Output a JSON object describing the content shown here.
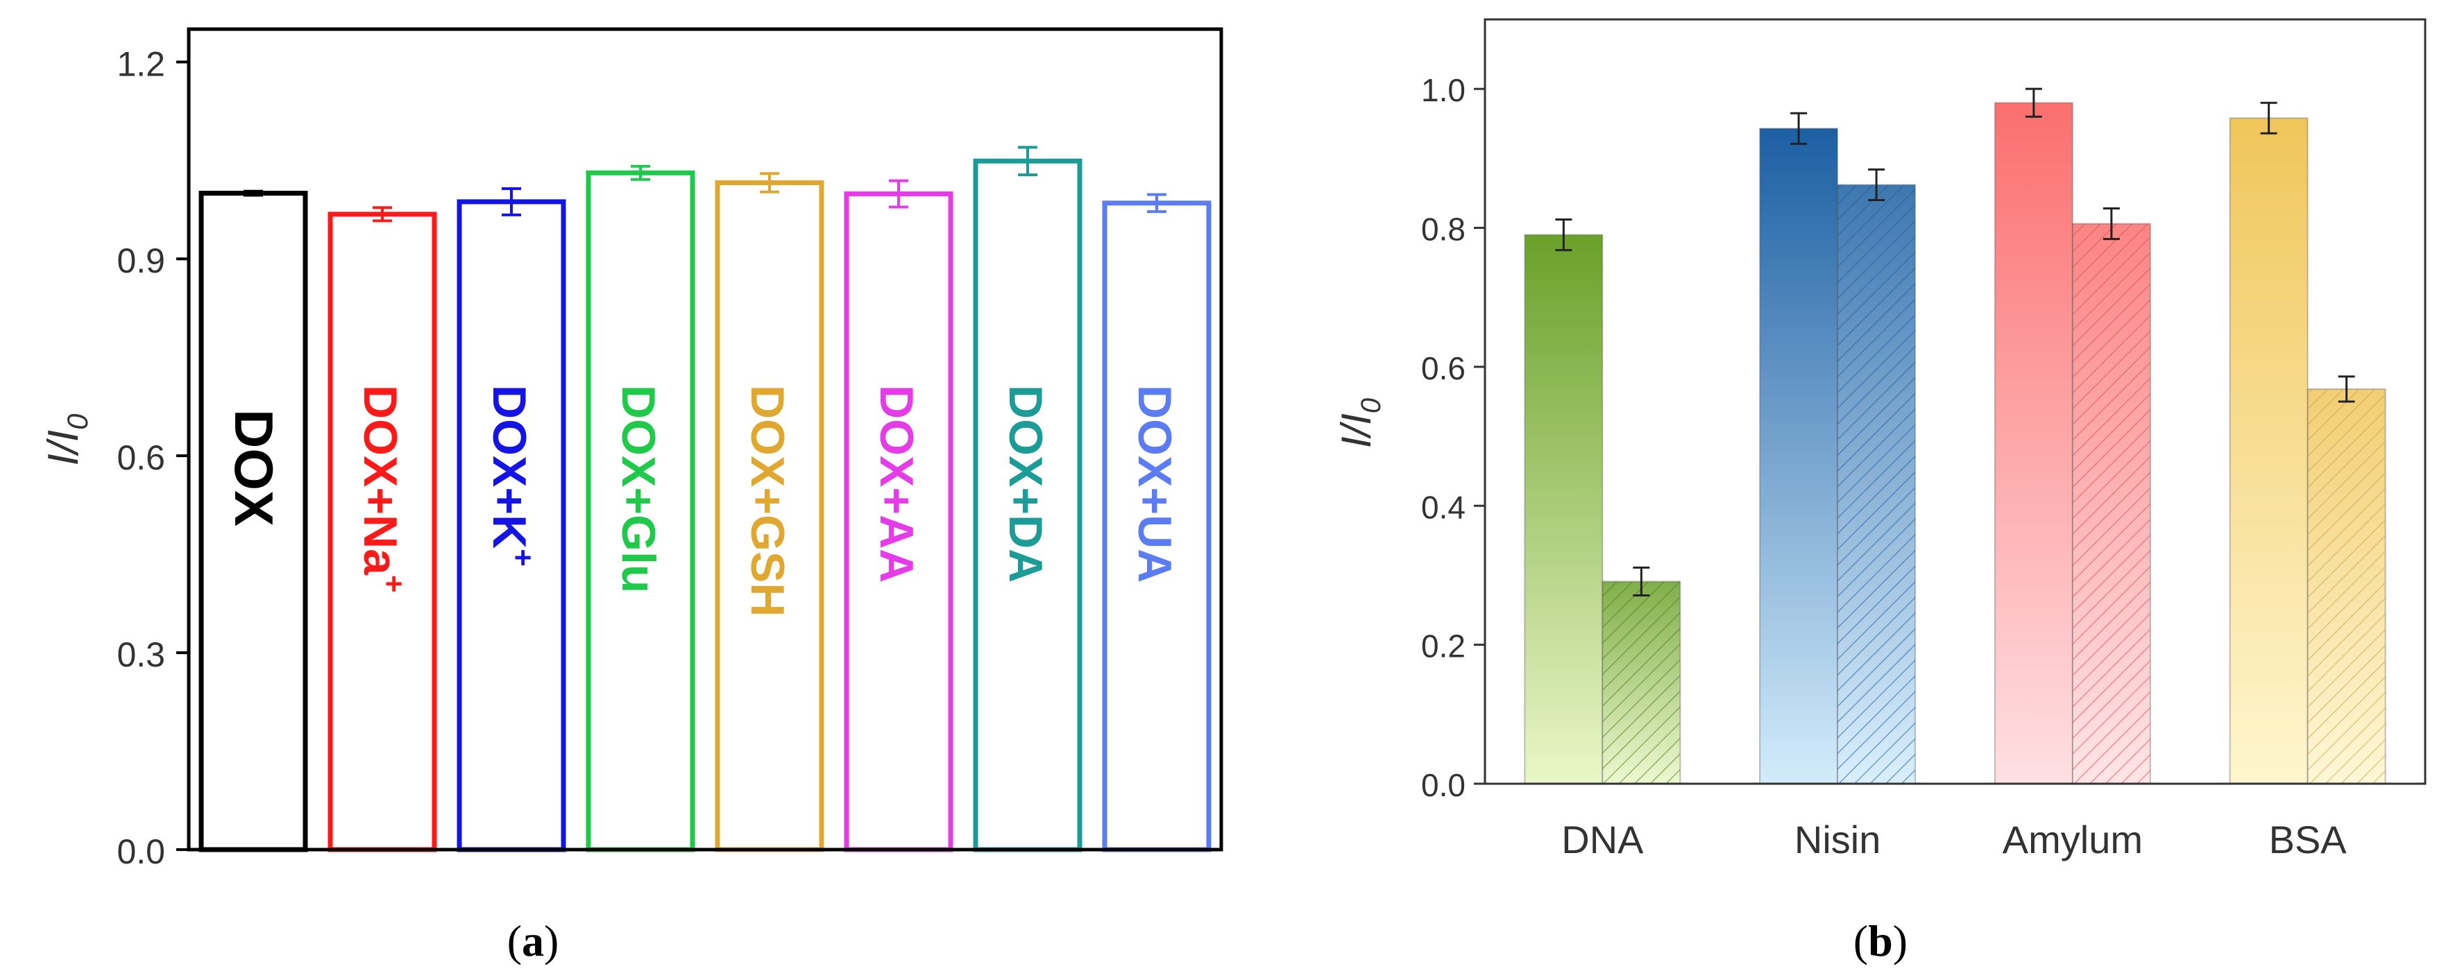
{
  "chart_data": [
    {
      "type": "bar",
      "panel_label": "(a)",
      "panel_letter": "a",
      "ylabel_main": "I/I",
      "ylabel_sub": "0",
      "xlabel": "",
      "ylim": [
        0,
        1.25
      ],
      "yticks": [
        "0.0",
        "0.3",
        "0.6",
        "0.9",
        "1.2"
      ],
      "ytick_values": [
        0,
        0.3,
        0.6,
        0.9,
        1.2
      ],
      "categories": [
        {
          "label": "DOX",
          "base": "DOX",
          "ion": "",
          "value": 1.0,
          "error": 0.003,
          "color": "#000000"
        },
        {
          "label": "DOX+Na+",
          "base": "DOX+Na",
          "ion": "+",
          "value": 0.968,
          "error": 0.01,
          "color": "#ff1a1a"
        },
        {
          "label": "DOX+K+",
          "base": "DOX+K",
          "ion": "+",
          "value": 0.987,
          "error": 0.02,
          "color": "#1414e6"
        },
        {
          "label": "DOX+Glu",
          "base": "DOX+Glu",
          "ion": "",
          "value": 1.031,
          "error": 0.01,
          "color": "#1fc94a"
        },
        {
          "label": "DOX+GSH",
          "base": "DOX+GSH",
          "ion": "",
          "value": 1.016,
          "error": 0.014,
          "color": "#e0a82e"
        },
        {
          "label": "DOX+AA",
          "base": "DOX+AA",
          "ion": "",
          "value": 0.999,
          "error": 0.02,
          "color": "#e53be8"
        },
        {
          "label": "DOX+DA",
          "base": "DOX+DA",
          "ion": "",
          "value": 1.049,
          "error": 0.021,
          "color": "#1c9c96"
        },
        {
          "label": "DOX+UA",
          "base": "DOX+UA",
          "ion": "",
          "value": 0.985,
          "error": 0.013,
          "color": "#5b7cf5"
        }
      ]
    },
    {
      "type": "bar",
      "panel_label": "(b)",
      "panel_letter": "b",
      "ylabel_main": "I/I",
      "ylabel_sub": "0",
      "xlabel": "",
      "ylim": [
        0,
        1.1
      ],
      "yticks": [
        "0.0",
        "0.2",
        "0.4",
        "0.6",
        "0.8",
        "1.0"
      ],
      "ytick_values": [
        0,
        0.2,
        0.4,
        0.6,
        0.8,
        1.0
      ],
      "categories": [
        "DNA",
        "Nisin",
        "Amylum",
        "BSA"
      ],
      "colors": [
        {
          "top": "#6aa12a",
          "bottom": "#eaf7c8",
          "hatch": "#4f7d1a"
        },
        {
          "top": "#1c5fa3",
          "bottom": "#d3ecfb",
          "hatch": "#1c5fa3"
        },
        {
          "top": "#fb6f6f",
          "bottom": "#ffe0e3",
          "hatch": "#d94f55"
        },
        {
          "top": "#f0c65a",
          "bottom": "#fff6cf",
          "hatch": "#c9a24a"
        }
      ],
      "series": [
        {
          "name": "solid",
          "values": [
            0.79,
            0.943,
            0.98,
            0.958
          ],
          "errors": [
            0.022,
            0.022,
            0.02,
            0.022
          ]
        },
        {
          "name": "hatched",
          "values": [
            0.291,
            0.862,
            0.806,
            0.568
          ],
          "errors": [
            0.02,
            0.022,
            0.022,
            0.018
          ]
        }
      ]
    }
  ]
}
